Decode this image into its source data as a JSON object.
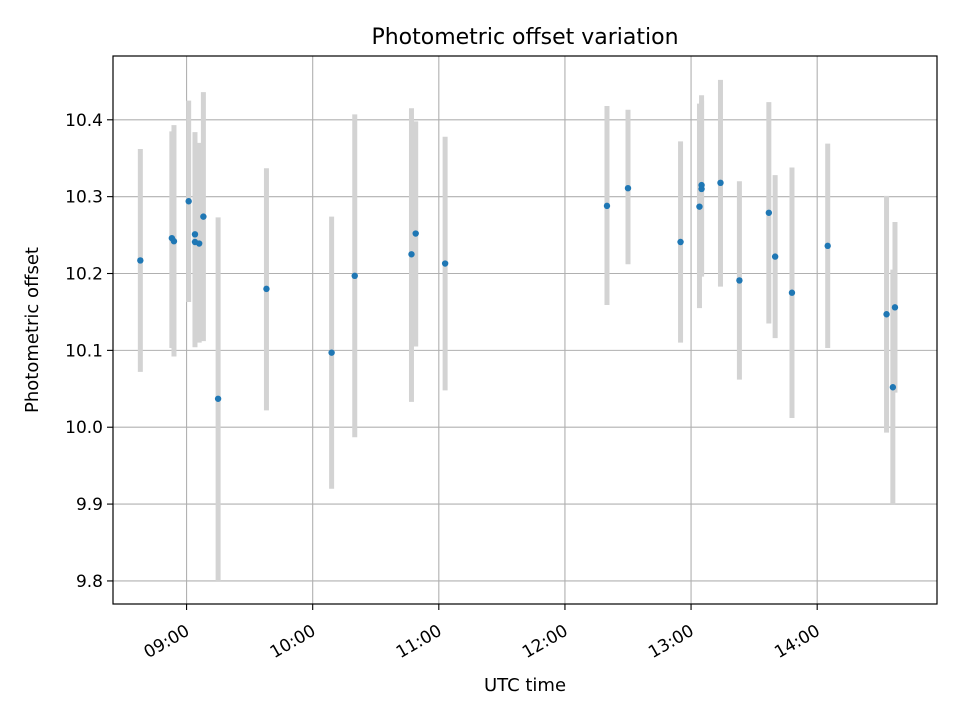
{
  "chart_data": {
    "type": "scatter",
    "title": "Photometric offset variation",
    "xlabel": "UTC time",
    "ylabel": "Photometric offset",
    "x_is_time": true,
    "xlim": [
      "08:25",
      "14:57"
    ],
    "ylim": [
      9.77,
      10.483
    ],
    "x_ticks": [
      "09:00",
      "10:00",
      "11:00",
      "12:00",
      "13:00",
      "14:00"
    ],
    "y_ticks": [
      9.8,
      9.9,
      10.0,
      10.1,
      10.2,
      10.3,
      10.4
    ],
    "y_tick_labels": [
      "9.8",
      "9.9",
      "10.0",
      "10.1",
      "10.2",
      "10.3",
      "10.4"
    ],
    "grid": true,
    "colors": {
      "point": "#1f77b4",
      "errorbar": "#d3d3d3",
      "grid": "#b0b0b0"
    },
    "points": [
      {
        "x": "08:38",
        "y": 10.217,
        "lo": 10.072,
        "hi": 10.362
      },
      {
        "x": "08:53",
        "y": 10.246,
        "lo": 10.103,
        "hi": 10.385
      },
      {
        "x": "08:54",
        "y": 10.242,
        "lo": 10.092,
        "hi": 10.393
      },
      {
        "x": "09:01",
        "y": 10.294,
        "lo": 10.163,
        "hi": 10.425
      },
      {
        "x": "09:04",
        "y": 10.251,
        "lo": 10.104,
        "hi": 10.384
      },
      {
        "x": "09:04",
        "y": 10.241,
        "lo": 10.11,
        "hi": 10.372
      },
      {
        "x": "09:06",
        "y": 10.239,
        "lo": 10.11,
        "hi": 10.37
      },
      {
        "x": "09:08",
        "y": 10.274,
        "lo": 10.112,
        "hi": 10.436
      },
      {
        "x": "09:15",
        "y": 10.037,
        "lo": 9.8,
        "hi": 10.273
      },
      {
        "x": "09:38",
        "y": 10.18,
        "lo": 10.022,
        "hi": 10.337
      },
      {
        "x": "10:09",
        "y": 10.097,
        "lo": 9.92,
        "hi": 10.274
      },
      {
        "x": "10:20",
        "y": 10.197,
        "lo": 9.987,
        "hi": 10.407
      },
      {
        "x": "10:47",
        "y": 10.225,
        "lo": 10.033,
        "hi": 10.415
      },
      {
        "x": "10:49",
        "y": 10.252,
        "lo": 10.105,
        "hi": 10.398
      },
      {
        "x": "11:03",
        "y": 10.213,
        "lo": 10.048,
        "hi": 10.378
      },
      {
        "x": "12:20",
        "y": 10.288,
        "lo": 10.159,
        "hi": 10.418
      },
      {
        "x": "12:30",
        "y": 10.311,
        "lo": 10.212,
        "hi": 10.413
      },
      {
        "x": "12:55",
        "y": 10.241,
        "lo": 10.11,
        "hi": 10.372
      },
      {
        "x": "13:04",
        "y": 10.287,
        "lo": 10.155,
        "hi": 10.421
      },
      {
        "x": "13:05",
        "y": 10.31,
        "lo": 10.196,
        "hi": 10.425
      },
      {
        "x": "13:05",
        "y": 10.315,
        "lo": 10.198,
        "hi": 10.432
      },
      {
        "x": "13:14",
        "y": 10.318,
        "lo": 10.183,
        "hi": 10.452
      },
      {
        "x": "13:23",
        "y": 10.191,
        "lo": 10.062,
        "hi": 10.32
      },
      {
        "x": "13:37",
        "y": 10.279,
        "lo": 10.135,
        "hi": 10.423
      },
      {
        "x": "13:40",
        "y": 10.222,
        "lo": 10.116,
        "hi": 10.328
      },
      {
        "x": "13:48",
        "y": 10.175,
        "lo": 10.012,
        "hi": 10.338
      },
      {
        "x": "14:05",
        "y": 10.236,
        "lo": 10.103,
        "hi": 10.369
      },
      {
        "x": "14:33",
        "y": 10.147,
        "lo": 9.993,
        "hi": 10.301
      },
      {
        "x": "14:36",
        "y": 10.052,
        "lo": 9.9,
        "hi": 10.205
      },
      {
        "x": "14:37",
        "y": 10.156,
        "lo": 10.045,
        "hi": 10.267
      }
    ]
  }
}
